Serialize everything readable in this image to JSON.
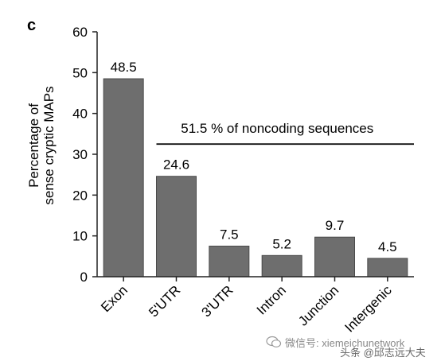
{
  "chart_data": {
    "type": "bar",
    "panel_label": "c",
    "title": "",
    "xlabel": "",
    "ylabel": [
      "Percentage of",
      "sense cryptic MAPs"
    ],
    "ylim": [
      0,
      60
    ],
    "yticks": [
      0,
      10,
      20,
      30,
      40,
      50,
      60
    ],
    "categories": [
      "Exon",
      "5'UTR",
      "3'UTR",
      "Intron",
      "Junction",
      "Intergenic"
    ],
    "values": [
      48.5,
      24.6,
      7.5,
      5.2,
      9.7,
      4.5
    ],
    "value_labels": [
      "48.5",
      "24.6",
      "7.5",
      "5.2",
      "9.7",
      "4.5"
    ],
    "bar_color": "#6e6e6e",
    "grid": false,
    "annotation": {
      "text": "51.5 % of noncoding sequences",
      "y": 32.5,
      "from_category": 1,
      "to_category": 5
    }
  },
  "watermark": {
    "line1": "微信号: xiemeichunetwork",
    "line2": "头条 @邱志远大夫"
  }
}
